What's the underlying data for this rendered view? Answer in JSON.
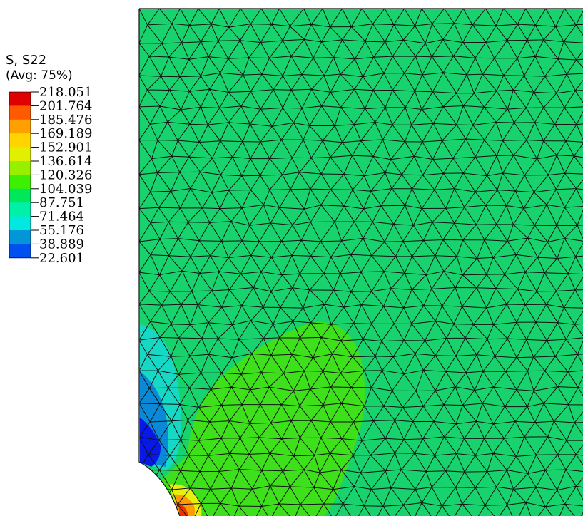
{
  "legend": {
    "title": "S, S22",
    "subtitle": "(Avg: 75%)",
    "levels": [
      {
        "value": "218.051",
        "color": "#e00000"
      },
      {
        "value": "201.764",
        "color": "#ff5a00"
      },
      {
        "value": "185.476",
        "color": "#ff9f00"
      },
      {
        "value": "169.189",
        "color": "#ffd400"
      },
      {
        "value": "152.901",
        "color": "#e0f000"
      },
      {
        "value": "136.614",
        "color": "#96f000"
      },
      {
        "value": "120.326",
        "color": "#3ef000"
      },
      {
        "value": "104.039",
        "color": "#00e85a"
      },
      {
        "value": "87.751",
        "color": "#00f0a8"
      },
      {
        "value": "71.464",
        "color": "#00e8e0"
      },
      {
        "value": "55.176",
        "color": "#0096d8"
      },
      {
        "value": "38.889",
        "color": "#0050f0"
      },
      {
        "value": "22.601",
        "color": "#0000e6"
      }
    ]
  },
  "contour": {
    "base_color": "#18d26e",
    "zones": [
      {
        "name": "green-zone",
        "color": "#3ee01c"
      },
      {
        "name": "cyan-zone",
        "color": "#17d8c4"
      },
      {
        "name": "blue-zone",
        "color": "#0a8ad6"
      },
      {
        "name": "deep-blue-zone",
        "color": "#0818e6"
      },
      {
        "name": "yellow-zone",
        "color": "#e6ef10"
      },
      {
        "name": "orange-zone",
        "color": "#ff9a00"
      },
      {
        "name": "red-zone",
        "color": "#f03000"
      }
    ],
    "mesh_line_color": "#111111"
  }
}
